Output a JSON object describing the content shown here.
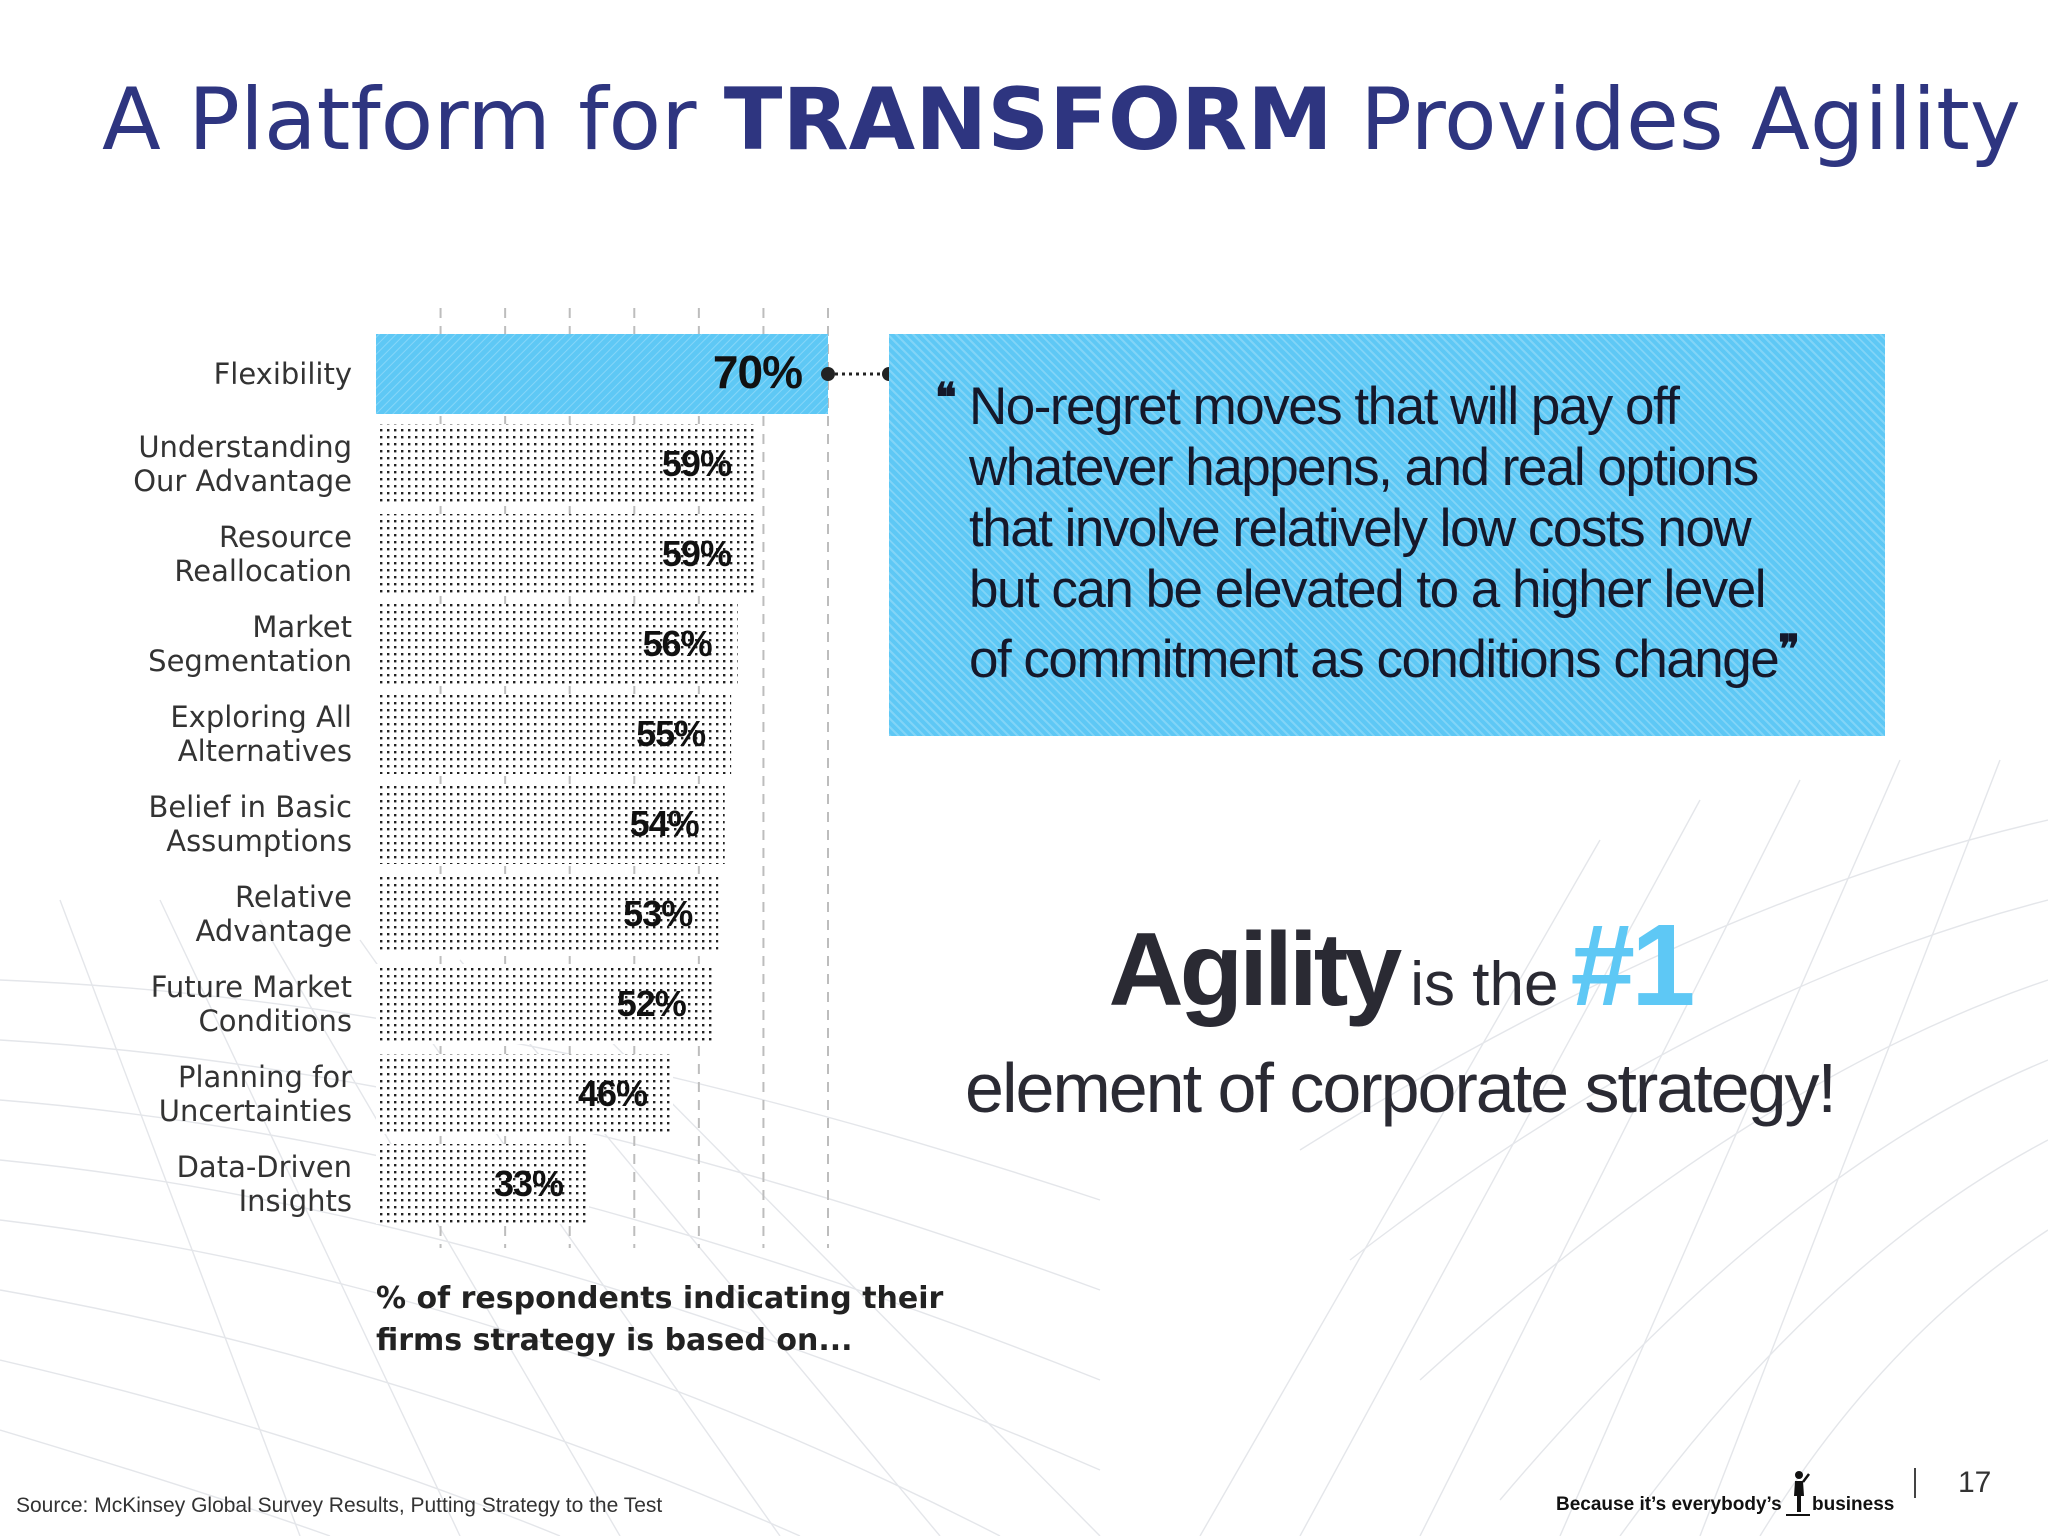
{
  "title": {
    "prefix": "A Platform for ",
    "bold": "TRANSFORM",
    "suffix": " Provides Agility"
  },
  "chart_data": {
    "type": "bar",
    "orientation": "horizontal",
    "categories": [
      [
        "Flexibility"
      ],
      [
        "Understanding",
        "Our Advantage"
      ],
      [
        "Resource",
        "Reallocation"
      ],
      [
        "Market",
        "Segmentation"
      ],
      [
        "Exploring All",
        "Alternatives"
      ],
      [
        "Belief in Basic",
        "Assumptions"
      ],
      [
        "Relative",
        "Advantage"
      ],
      [
        "Future Market",
        "Conditions"
      ],
      [
        "Planning for",
        "Uncertainties"
      ],
      [
        "Data-Driven",
        "Insights"
      ]
    ],
    "values": [
      70,
      59,
      59,
      56,
      55,
      54,
      53,
      52,
      46,
      33
    ],
    "value_labels": [
      "70%",
      "59%",
      "59%",
      "56%",
      "55%",
      "54%",
      "53%",
      "52%",
      "46%",
      "33%"
    ],
    "highlight_index": 0,
    "xlim": [
      0,
      70
    ],
    "gridlines": [
      10,
      20,
      30,
      40,
      50,
      60,
      70
    ],
    "caption": [
      "% of respondents indicating their",
      "firms strategy is based on..."
    ],
    "colors": {
      "highlight": "#5ec8f5",
      "pattern": "#222222",
      "label": "#111111"
    }
  },
  "quote": {
    "open_mark": "❝",
    "lines": [
      "No-regret moves that will pay off",
      "whatever happens, and real options",
      "that involve relatively low costs now",
      "but can be elevated to a higher level",
      "of commitment as conditions change"
    ],
    "close_mark": "❞"
  },
  "agility": {
    "word": "Agility",
    "is_the": "is the",
    "rank": "#1",
    "line2": "element of corporate strategy!"
  },
  "footer": {
    "source": "Source: McKinsey Global Survey Results, Putting Strategy to the Test",
    "brand_a": "Because it’s everybody’s",
    "brand_b": "business",
    "page": "17"
  },
  "colors": {
    "title": "#2e3580",
    "accent": "#5ec8f5"
  }
}
